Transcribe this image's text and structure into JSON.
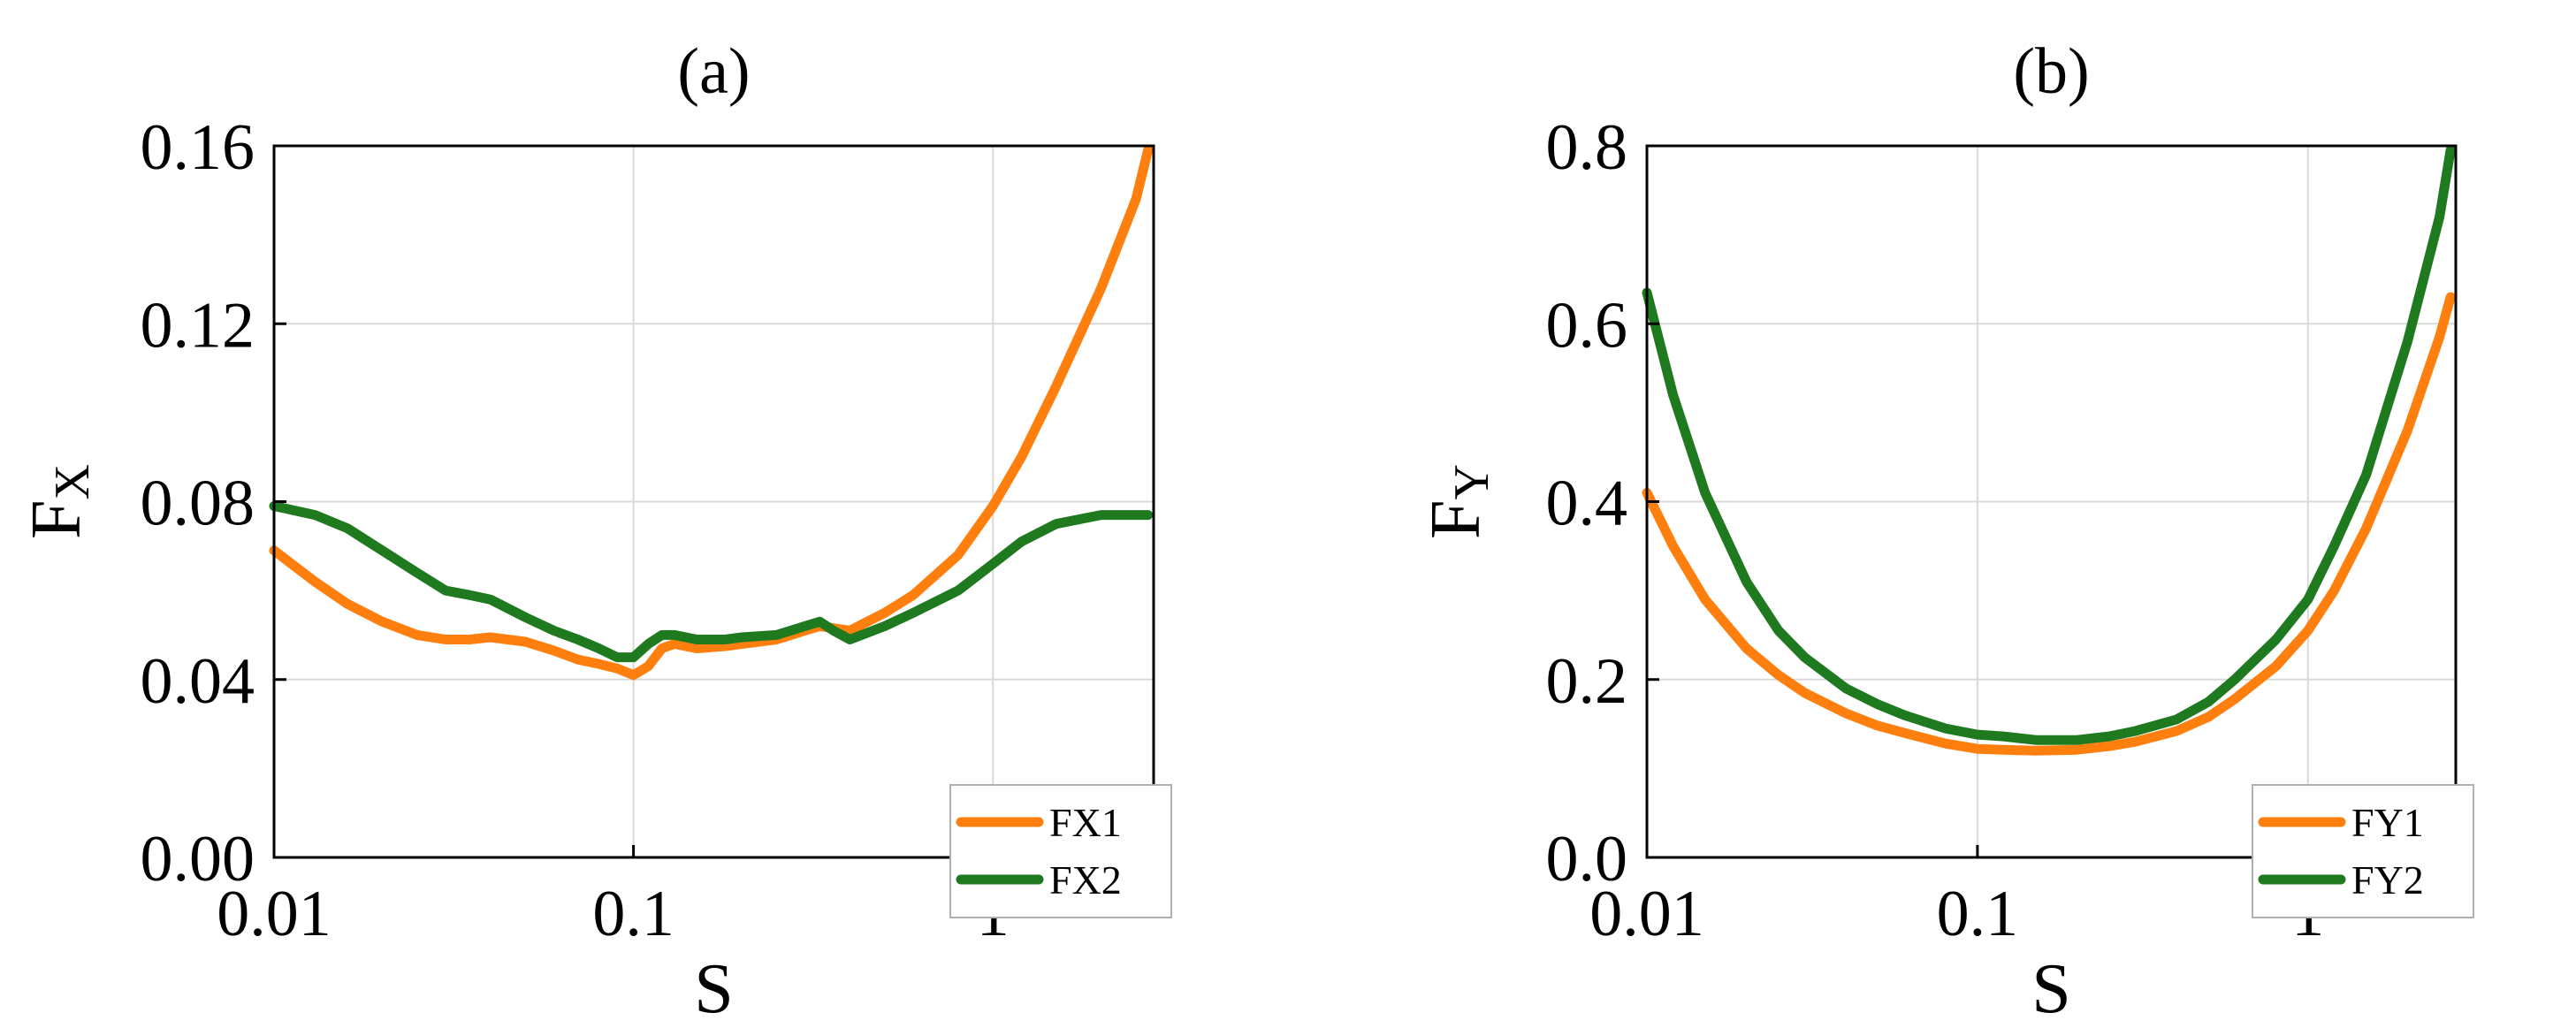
{
  "chart_data": [
    {
      "type": "line",
      "panel_label": "(a)",
      "title": "",
      "xlabel": "S",
      "ylabel": "F",
      "ylabel_subscript": "X",
      "x_scale": "log",
      "xlim": [
        0.01,
        2.8
      ],
      "ylim": [
        0.0,
        0.16
      ],
      "x_ticks": [
        0.01,
        0.1,
        1
      ],
      "x_tick_labels": [
        "0.01",
        "0.1",
        "1"
      ],
      "y_ticks": [
        0.0,
        0.04,
        0.08,
        0.12,
        0.16
      ],
      "y_tick_labels": [
        "0.00",
        "0.04",
        "0.08",
        "0.12",
        "0.16"
      ],
      "grid": true,
      "legend_position": "bottom-right",
      "series": [
        {
          "name": "FX1",
          "color": "#ff7f0e",
          "x": [
            0.01,
            0.013,
            0.016,
            0.02,
            0.025,
            0.03,
            0.035,
            0.04,
            0.05,
            0.06,
            0.07,
            0.08,
            0.09,
            0.1,
            0.11,
            0.12,
            0.13,
            0.15,
            0.18,
            0.2,
            0.25,
            0.3,
            0.33,
            0.4,
            0.5,
            0.6,
            0.8,
            1.0,
            1.2,
            1.5,
            2.0,
            2.5,
            2.7
          ],
          "y": [
            0.069,
            0.062,
            0.057,
            0.053,
            0.05,
            0.049,
            0.049,
            0.0495,
            0.0485,
            0.0465,
            0.0445,
            0.0435,
            0.0425,
            0.041,
            0.043,
            0.047,
            0.048,
            0.047,
            0.0475,
            0.048,
            0.049,
            0.051,
            0.052,
            0.051,
            0.055,
            0.059,
            0.068,
            0.079,
            0.09,
            0.106,
            0.128,
            0.148,
            0.159
          ]
        },
        {
          "name": "FX2",
          "color": "#1f7a1f",
          "x": [
            0.01,
            0.013,
            0.016,
            0.02,
            0.025,
            0.03,
            0.035,
            0.04,
            0.05,
            0.06,
            0.07,
            0.08,
            0.09,
            0.1,
            0.11,
            0.12,
            0.13,
            0.15,
            0.18,
            0.2,
            0.25,
            0.3,
            0.33,
            0.36,
            0.4,
            0.5,
            0.6,
            0.8,
            1.0,
            1.2,
            1.5,
            2.0,
            2.5,
            2.7
          ],
          "y": [
            0.079,
            0.077,
            0.074,
            0.069,
            0.064,
            0.06,
            0.059,
            0.058,
            0.054,
            0.051,
            0.049,
            0.047,
            0.045,
            0.045,
            0.048,
            0.05,
            0.05,
            0.049,
            0.049,
            0.0495,
            0.05,
            0.052,
            0.053,
            0.051,
            0.049,
            0.052,
            0.055,
            0.06,
            0.066,
            0.071,
            0.075,
            0.077,
            0.077,
            0.077
          ]
        }
      ]
    },
    {
      "type": "line",
      "panel_label": "(b)",
      "title": "",
      "xlabel": "S",
      "ylabel": "F",
      "ylabel_subscript": "Y",
      "x_scale": "log",
      "xlim": [
        0.01,
        2.8
      ],
      "ylim": [
        0.0,
        0.8
      ],
      "x_ticks": [
        0.01,
        0.1,
        1
      ],
      "x_tick_labels": [
        "0.01",
        "0.1",
        "1"
      ],
      "y_ticks": [
        0.0,
        0.2,
        0.4,
        0.6,
        0.8
      ],
      "y_tick_labels": [
        "0.0",
        "0.2",
        "0.4",
        "0.6",
        "0.8"
      ],
      "grid": true,
      "legend_position": "bottom-right",
      "series": [
        {
          "name": "FY1",
          "color": "#ff7f0e",
          "x": [
            0.01,
            0.012,
            0.015,
            0.02,
            0.025,
            0.03,
            0.04,
            0.05,
            0.06,
            0.08,
            0.1,
            0.12,
            0.15,
            0.2,
            0.25,
            0.3,
            0.4,
            0.5,
            0.6,
            0.8,
            1.0,
            1.2,
            1.5,
            2.0,
            2.5,
            2.7
          ],
          "y": [
            0.41,
            0.35,
            0.29,
            0.235,
            0.205,
            0.185,
            0.162,
            0.148,
            0.14,
            0.128,
            0.122,
            0.121,
            0.12,
            0.121,
            0.125,
            0.13,
            0.142,
            0.158,
            0.178,
            0.215,
            0.255,
            0.3,
            0.37,
            0.48,
            0.585,
            0.63
          ]
        },
        {
          "name": "FY2",
          "color": "#1f7a1f",
          "x": [
            0.01,
            0.012,
            0.015,
            0.02,
            0.025,
            0.03,
            0.04,
            0.05,
            0.06,
            0.08,
            0.1,
            0.12,
            0.15,
            0.2,
            0.25,
            0.3,
            0.4,
            0.5,
            0.6,
            0.8,
            1.0,
            1.2,
            1.5,
            2.0,
            2.5,
            2.7
          ],
          "y": [
            0.635,
            0.52,
            0.41,
            0.31,
            0.255,
            0.225,
            0.19,
            0.172,
            0.16,
            0.145,
            0.138,
            0.136,
            0.132,
            0.132,
            0.136,
            0.142,
            0.155,
            0.175,
            0.2,
            0.245,
            0.29,
            0.35,
            0.43,
            0.58,
            0.72,
            0.795
          ]
        }
      ]
    }
  ]
}
